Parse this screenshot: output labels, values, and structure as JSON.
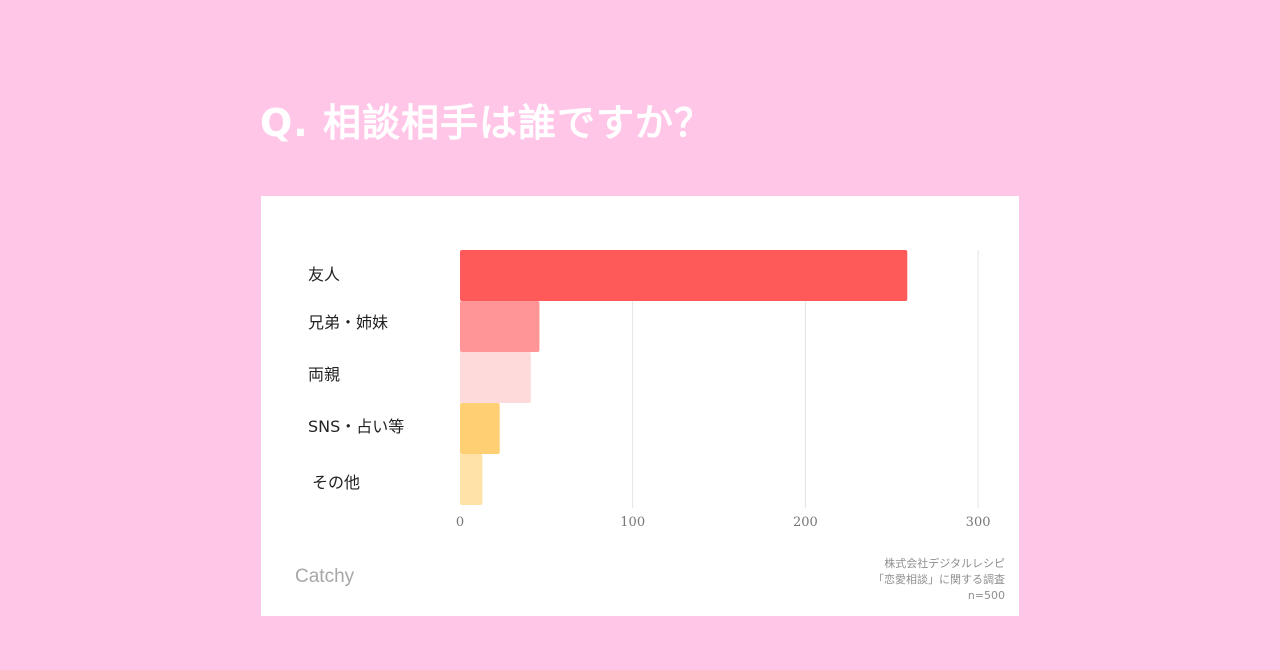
{
  "header": {
    "title": "Q. 相談相手は誰ですか？"
  },
  "chart_data": {
    "type": "bar",
    "orientation": "horizontal",
    "categories": [
      "友人",
      "兄弟・姉妹",
      "両親",
      "SNS・占い等",
      "その他"
    ],
    "values": [
      259,
      46,
      41,
      23,
      13
    ],
    "xlim": [
      0,
      300
    ],
    "xticks": [
      0,
      100,
      200,
      300
    ],
    "grid": true,
    "colors": [
      "#ff5a5a",
      "#ff9596",
      "#ffdada",
      "#ffd073",
      "#ffe2a8"
    ]
  },
  "footer": {
    "brand": "Catchy",
    "source_lines": [
      "株式会社デジタルレシピ",
      "「恋愛相談」に関する調査",
      "n=500"
    ]
  }
}
